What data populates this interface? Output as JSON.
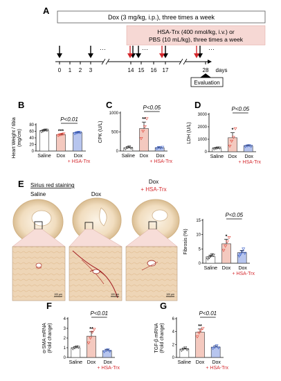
{
  "panel_a": {
    "letter": "A",
    "dox_box": "Dox (3 mg/kg, i.p.), three times a week",
    "hsa_box_line1": "HSA-Trx (400 nmol/kg, i.v.) or",
    "hsa_box_line2": "PBS (10 mL/kg), three times a week",
    "ticks": [
      "0",
      "1",
      "2",
      "3",
      "14",
      "15",
      "16",
      "17",
      "28"
    ],
    "days_label": "days",
    "dots": "···",
    "evaluation": "Evaluation"
  },
  "groups": {
    "saline": "Saline",
    "dox": "Dox",
    "dox_hsa_a": "Dox",
    "dox_hsa_b": "+ HSA-Trx"
  },
  "panel_e": {
    "letter": "E",
    "title": "Sirius red staining",
    "col_saline": "Saline",
    "col_dox": "Dox",
    "col_hsa_a": "Dox",
    "col_hsa_b": "+ HSA-Trx",
    "scale": "100 μm"
  },
  "colors": {
    "saline": "#ffffff",
    "dox": "#f4c9bf",
    "dox_hsa": "#b7c5ee",
    "dox_pt": "#e2473b",
    "hsa_pt": "#3a5fc8",
    "hsa_text": "#d4262b",
    "hsa_box": "#f6d8d4"
  },
  "chart_data": [
    {
      "id": "B",
      "type": "bar",
      "ylabel": "Heart Weight / tibia (mg/cm)",
      "categories": [
        "Saline",
        "Dox",
        "Dox + HSA-Trx"
      ],
      "values": [
        62,
        50,
        56
      ],
      "errors": [
        2,
        2,
        2
      ],
      "ylim": [
        0,
        80
      ],
      "yticks": [
        "0",
        "20",
        "40",
        "60",
        "80"
      ],
      "pvalue": "P<0.01",
      "marks": [
        "",
        "***",
        ""
      ],
      "points": [
        [
          59,
          61,
          63,
          64,
          63
        ],
        [
          47,
          49,
          50,
          51,
          52
        ],
        [
          53,
          55,
          56,
          57,
          56
        ]
      ]
    },
    {
      "id": "C",
      "type": "bar",
      "ylabel": "CPK (U/L)",
      "categories": [
        "Saline",
        "Dox",
        "Dox + HSA-Trx"
      ],
      "values": [
        85,
        590,
        85
      ],
      "errors": [
        25,
        170,
        20
      ],
      "ylim": [
        0,
        1000
      ],
      "yticks": [
        "0",
        "500",
        "1000"
      ],
      "pvalue": "P<0.05",
      "marks": [
        "",
        "**",
        ""
      ],
      "points": [
        [
          60,
          90,
          110,
          75
        ],
        [
          330,
          520,
          640,
          850
        ],
        [
          65,
          95,
          80,
          100
        ]
      ]
    },
    {
      "id": "D",
      "type": "bar",
      "ylabel": "LDH (U/L)",
      "categories": [
        "Saline",
        "Dox",
        "Dox + HSA-Trx"
      ],
      "values": [
        280,
        1120,
        460
      ],
      "errors": [
        40,
        400,
        60
      ],
      "ylim": [
        0,
        3000
      ],
      "yticks": [
        "0",
        "1000",
        "2000",
        "3000"
      ],
      "pvalue": "P<0.05",
      "marks": [
        "",
        "*",
        ""
      ],
      "points": [
        [
          230,
          270,
          310,
          300
        ],
        [
          450,
          850,
          1150,
          1850
        ],
        [
          420,
          470,
          500,
          440
        ]
      ]
    },
    {
      "id": "E",
      "type": "bar",
      "ylabel": "Fibrosis (%)",
      "categories": [
        "Saline",
        "Dox",
        "Dox + HSA-Trx"
      ],
      "values": [
        2.3,
        6.8,
        3.7
      ],
      "errors": [
        0.5,
        1.6,
        0.8
      ],
      "ylim": [
        0,
        15
      ],
      "yticks": [
        "0",
        "5",
        "10",
        "15"
      ],
      "pvalue": "P<0.05",
      "marks": [
        "",
        "*",
        ""
      ],
      "points": [
        [
          1.5,
          2.0,
          2.5,
          3.0,
          2.8
        ],
        [
          4.5,
          6.0,
          7.5,
          9.0
        ],
        [
          2.5,
          3.2,
          4.0,
          5.0,
          3.5
        ]
      ]
    },
    {
      "id": "F",
      "type": "bar",
      "ylabel": "α-SMA mRNA (Fold change)",
      "categories": [
        "Saline",
        "Dox",
        "Dox + HSA-Trx"
      ],
      "values": [
        1.0,
        2.2,
        0.7
      ],
      "errors": [
        0.12,
        0.45,
        0.12
      ],
      "ylim": [
        0,
        4
      ],
      "yticks": [
        "0",
        "1",
        "2",
        "3",
        "4"
      ],
      "pvalue": "P<0.01",
      "marks": [
        "",
        "**",
        ""
      ],
      "points": [
        [
          0.9,
          1.0,
          1.1,
          1.05
        ],
        [
          1.5,
          2.0,
          2.6,
          2.9
        ],
        [
          0.6,
          0.75,
          0.8,
          0.65
        ]
      ]
    },
    {
      "id": "G",
      "type": "bar",
      "ylabel": "TGF-β mRNA (Fold change)",
      "categories": [
        "Saline",
        "Dox",
        "Dox + HSA-Trx"
      ],
      "values": [
        1.3,
        3.9,
        1.6
      ],
      "errors": [
        0.15,
        0.5,
        0.2
      ],
      "ylim": [
        0,
        6
      ],
      "yticks": [
        "0",
        "2",
        "4",
        "6"
      ],
      "pvalue": "P<0.01",
      "marks": [
        "",
        "**",
        ""
      ],
      "points": [
        [
          1.1,
          1.3,
          1.5,
          1.2
        ],
        [
          3.2,
          3.8,
          4.2,
          4.5
        ],
        [
          1.4,
          1.6,
          1.8,
          1.5
        ]
      ]
    }
  ]
}
